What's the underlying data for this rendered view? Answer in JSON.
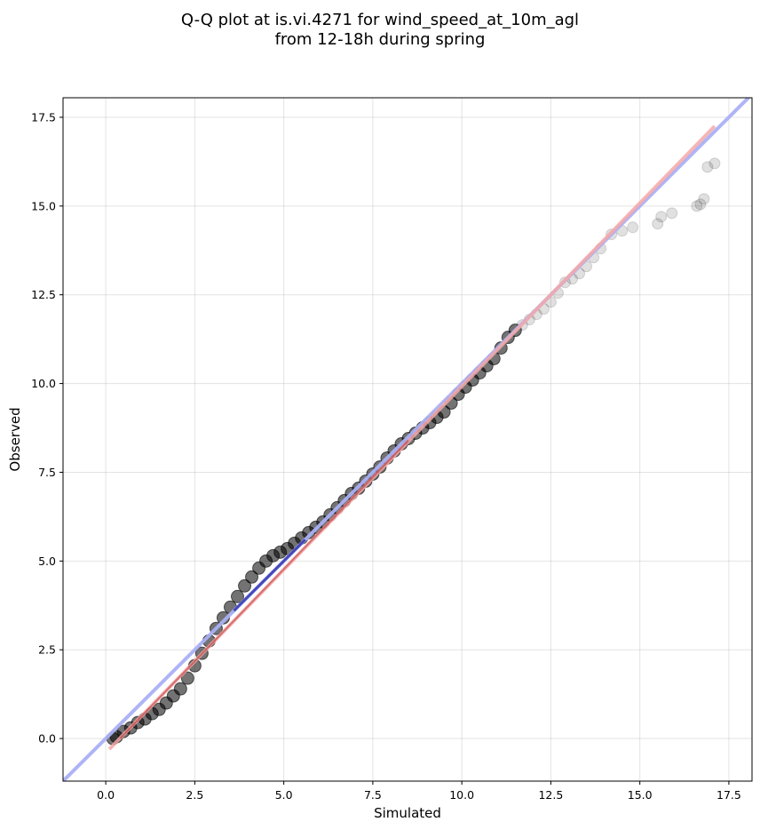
{
  "chart_data": {
    "type": "scatter",
    "title_lines": [
      "Q-Q plot at is.vi.4271 for wind_speed_at_10m_agl",
      "from 12-18h during spring"
    ],
    "xlabel": "Simulated",
    "ylabel": "Observed",
    "xlim": [
      -1.2,
      18.15
    ],
    "ylim": [
      -1.2,
      18.05
    ],
    "xticks": [
      0.0,
      2.5,
      5.0,
      7.5,
      10.0,
      12.5,
      15.0,
      17.5
    ],
    "yticks": [
      0.0,
      2.5,
      5.0,
      7.5,
      10.0,
      12.5,
      15.0,
      17.5
    ],
    "xtick_labels": [
      "0.0",
      "2.5",
      "5.0",
      "7.5",
      "10.0",
      "12.5",
      "15.0",
      "17.5"
    ],
    "ytick_labels": [
      "0.0",
      "2.5",
      "5.0",
      "7.5",
      "10.0",
      "12.5",
      "15.0",
      "17.5"
    ],
    "grid": true,
    "colors": {
      "points": "#000000",
      "identity_line": "#aab0f5",
      "fit_line": "#f4a8a8",
      "dense_blue": "#1a1aa0",
      "dense_red": "#b01818"
    },
    "series": [
      {
        "kind": "points",
        "x": [
          0.2,
          0.3,
          0.5,
          0.7,
          0.9,
          1.1,
          1.3,
          1.5,
          1.7,
          1.9,
          2.1,
          2.3,
          2.5,
          2.7,
          2.9,
          3.1,
          3.3,
          3.5,
          3.7,
          3.9,
          4.1,
          4.3,
          4.5,
          4.7,
          4.9,
          5.1,
          5.3,
          5.5,
          5.7,
          5.9,
          6.1,
          6.3,
          6.5,
          6.7,
          6.9,
          7.1,
          7.3,
          7.5,
          7.7,
          7.9,
          8.1,
          8.3,
          8.5,
          8.7,
          8.9,
          9.1,
          9.3,
          9.5,
          9.7,
          9.9,
          10.1,
          10.3,
          10.5,
          10.7,
          10.9,
          11.1,
          11.3,
          11.5,
          11.7,
          11.9,
          12.1,
          12.3,
          12.5,
          12.7,
          12.9,
          13.1,
          13.3,
          13.5,
          13.7,
          13.9,
          14.2,
          14.5,
          14.8,
          15.5,
          15.6,
          15.9,
          16.6,
          16.7,
          16.8,
          16.9,
          17.1
        ],
        "y": [
          0.0,
          0.05,
          0.2,
          0.3,
          0.45,
          0.55,
          0.7,
          0.82,
          1.0,
          1.2,
          1.4,
          1.7,
          2.05,
          2.4,
          2.75,
          3.1,
          3.4,
          3.7,
          4.0,
          4.3,
          4.55,
          4.8,
          5.0,
          5.15,
          5.25,
          5.35,
          5.5,
          5.65,
          5.8,
          5.95,
          6.1,
          6.3,
          6.5,
          6.7,
          6.9,
          7.05,
          7.25,
          7.45,
          7.65,
          7.9,
          8.1,
          8.3,
          8.45,
          8.6,
          8.75,
          8.9,
          9.05,
          9.2,
          9.45,
          9.7,
          9.9,
          10.1,
          10.3,
          10.5,
          10.7,
          11.0,
          11.3,
          11.5,
          11.65,
          11.8,
          11.95,
          12.1,
          12.3,
          12.55,
          12.85,
          12.95,
          13.1,
          13.3,
          13.55,
          13.8,
          14.2,
          14.3,
          14.4,
          14.5,
          14.7,
          14.8,
          15.0,
          15.05,
          15.2,
          16.1,
          16.2
        ]
      },
      {
        "kind": "identity-line",
        "x": [
          -1.2,
          18.15
        ],
        "y": [
          -1.2,
          18.15
        ]
      },
      {
        "kind": "fit-line",
        "x": [
          0.1,
          17.1
        ],
        "y": [
          -0.3,
          17.25
        ]
      }
    ]
  }
}
